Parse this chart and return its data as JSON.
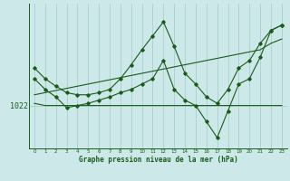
{
  "bg_color": "#cce8e8",
  "line_color": "#1a5c1a",
  "grid_color": "#aacece",
  "xlabel": "Graphe pression niveau de la mer (hPa)",
  "ylabel": "1022",
  "xlim": [
    -0.5,
    23.5
  ],
  "ylim_min": 1018.0,
  "ylim_max": 1031.5,
  "y_tick_val": 1022,
  "hours": [
    0,
    1,
    2,
    3,
    4,
    5,
    6,
    7,
    8,
    9,
    10,
    11,
    12,
    13,
    14,
    15,
    16,
    17,
    18,
    19,
    20,
    21,
    22,
    23
  ],
  "series_diagonal": [
    1023.0,
    1023.2,
    1023.4,
    1023.6,
    1023.8,
    1024.0,
    1024.2,
    1024.4,
    1024.6,
    1024.8,
    1025.0,
    1025.2,
    1025.4,
    1025.6,
    1025.8,
    1026.0,
    1026.2,
    1026.4,
    1026.6,
    1026.8,
    1027.0,
    1027.2,
    1027.8,
    1028.2
  ],
  "series_spike": [
    1025.5,
    1024.5,
    1023.8,
    1023.2,
    1023.0,
    1023.0,
    1023.2,
    1023.5,
    1024.5,
    1025.8,
    1027.2,
    1028.5,
    1029.8,
    1027.5,
    1025.0,
    1024.0,
    1022.8,
    1022.2,
    1023.5,
    1025.5,
    1026.2,
    1027.8,
    1029.0,
    1029.5
  ],
  "series_dip": [
    1024.5,
    1023.5,
    1022.8,
    1021.8,
    1022.0,
    1022.2,
    1022.5,
    1022.8,
    1023.2,
    1023.5,
    1024.0,
    1024.5,
    1026.2,
    1023.5,
    1022.5,
    1022.0,
    1020.5,
    1019.0,
    1021.5,
    1024.0,
    1024.5,
    1026.5,
    1029.0,
    1029.5
  ],
  "series_flat": [
    1022.2,
    1022.0,
    1022.0,
    1022.0,
    1022.0,
    1022.0,
    1022.0,
    1022.0,
    1022.0,
    1022.0,
    1022.0,
    1022.0,
    1022.0,
    1022.0,
    1022.0,
    1022.0,
    1022.0,
    1022.0,
    1022.0,
    1022.0,
    1022.0,
    1022.0,
    1022.0,
    1022.0
  ]
}
